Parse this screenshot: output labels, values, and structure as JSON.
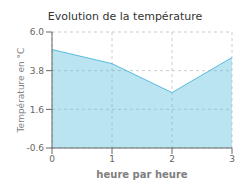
{
  "chart_data": {
    "type": "area",
    "title": "Evolution de la température",
    "xlabel": "heure par heure",
    "ylabel": "Température en °C",
    "x": [
      0,
      1,
      2,
      3
    ],
    "values": [
      5.0,
      4.2,
      2.55,
      4.55
    ],
    "color": "#55bbdd",
    "xlim": [
      0,
      3
    ],
    "ylim": [
      -0.6,
      6.0
    ],
    "xticks": [
      0,
      1,
      2,
      3
    ],
    "yticks": [
      -0.6,
      1.6,
      3.8,
      {
        "value": 6.0,
        "label": "6.0"
      }
    ],
    "grid": true
  }
}
